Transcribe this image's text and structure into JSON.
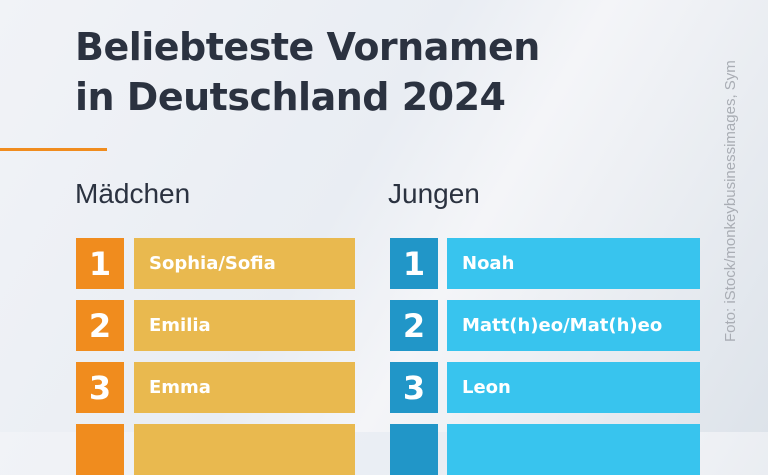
{
  "title_line1": "Beliebteste Vornamen",
  "title_line2": "in Deutschland 2024",
  "credit": "Foto: iStock/monkeybusinessimages, Sym",
  "colors": {
    "accent": "#f08c1e",
    "girls_rank": "#f08c1e",
    "girls_name": "#e9b94f",
    "boys_rank": "#2196c8",
    "boys_name": "#38c4ee"
  },
  "girls": {
    "heading": "Mädchen",
    "items": [
      {
        "rank": "1",
        "name": "Sophia/Sofia"
      },
      {
        "rank": "2",
        "name": "Emilia"
      },
      {
        "rank": "3",
        "name": "Emma"
      },
      {
        "rank": "",
        "name": ""
      }
    ]
  },
  "boys": {
    "heading": "Jungen",
    "items": [
      {
        "rank": "1",
        "name": "Noah"
      },
      {
        "rank": "2",
        "name": "Matt(h)eo/Mat(h)eo"
      },
      {
        "rank": "3",
        "name": "Leon"
      },
      {
        "rank": "",
        "name": ""
      }
    ]
  }
}
